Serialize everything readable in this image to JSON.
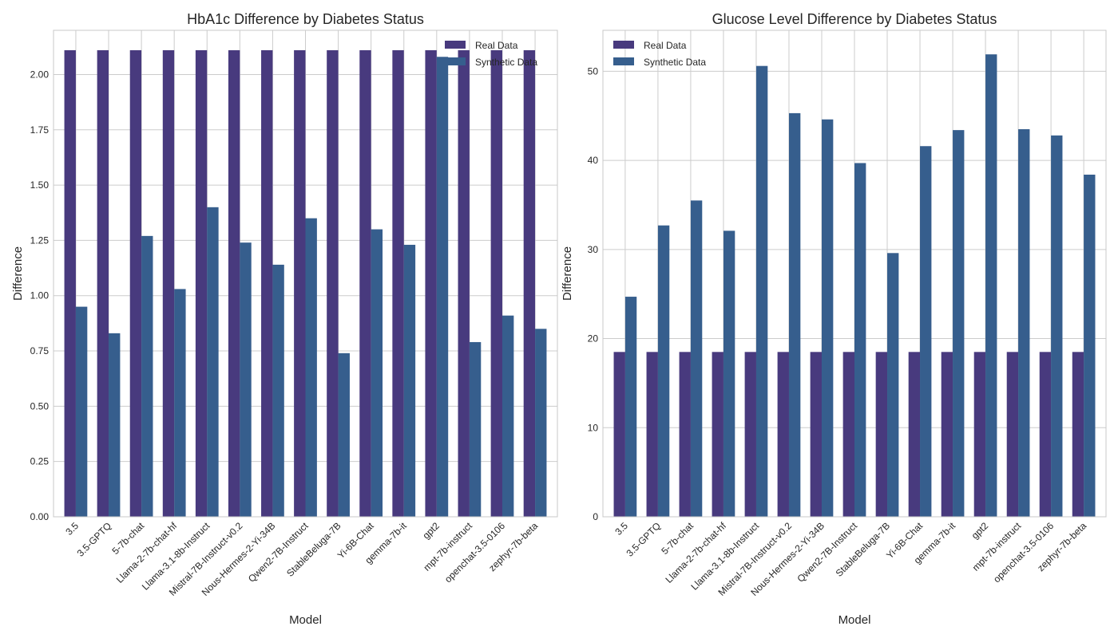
{
  "colors": {
    "real": "#483a7e",
    "synthetic": "#365e8d",
    "grid": "#cccccc",
    "axes_edge": "#c8c8c8",
    "background": "#ffffff"
  },
  "chart_data": [
    {
      "type": "bar",
      "title": "HbA1c Difference by Diabetes Status",
      "xlabel": "Model",
      "ylabel": "Difference",
      "ylim": [
        0,
        2.2
      ],
      "yticks": [
        0.0,
        0.25,
        0.5,
        0.75,
        1.0,
        1.25,
        1.5,
        1.75,
        2.0
      ],
      "ytick_labels": [
        "0.00",
        "0.25",
        "0.50",
        "0.75",
        "1.00",
        "1.25",
        "1.50",
        "1.75",
        "2.00"
      ],
      "grid": true,
      "legend_position": "top-right",
      "categories": [
        "3.5",
        "3.5-GPTQ",
        "5-7b-chat",
        "Llama-2-7b-chat-hf",
        "Llama-3.1-8b-Instruct",
        "Mistral-7B-Instruct-v0.2",
        "Nous-Hermes-2-Yi-34B",
        "Qwen2-7B-Instruct",
        "StableBeluga-7B",
        "Yi-6B-Chat",
        "gemma-7b-it",
        "gpt2",
        "mpt-7b-instruct",
        "openchat-3.5-0106",
        "zephyr-7b-beta"
      ],
      "series": [
        {
          "name": "Real Data",
          "color_key": "real",
          "values": [
            2.11,
            2.11,
            2.11,
            2.11,
            2.11,
            2.11,
            2.11,
            2.11,
            2.11,
            2.11,
            2.11,
            2.11,
            2.11,
            2.11,
            2.11
          ]
        },
        {
          "name": "Synthetic Data",
          "color_key": "synthetic",
          "values": [
            0.95,
            0.83,
            1.27,
            1.03,
            1.4,
            1.24,
            1.14,
            1.35,
            0.74,
            1.3,
            1.23,
            2.08,
            0.79,
            0.91,
            0.85
          ]
        }
      ]
    },
    {
      "type": "bar",
      "title": "Glucose Level Difference by Diabetes Status",
      "xlabel": "Model",
      "ylabel": "Difference",
      "ylim": [
        0,
        54.6
      ],
      "yticks": [
        0,
        10,
        20,
        30,
        40,
        50
      ],
      "ytick_labels": [
        "0",
        "10",
        "20",
        "30",
        "40",
        "50"
      ],
      "grid": true,
      "legend_position": "top-left",
      "categories": [
        "3.5",
        "3.5-GPTQ",
        "5-7b-chat",
        "Llama-2-7b-chat-hf",
        "Llama-3.1-8b-Instruct",
        "Mistral-7B-Instruct-v0.2",
        "Nous-Hermes-2-Yi-34B",
        "Qwen2-7B-Instruct",
        "StableBeluga-7B",
        "Yi-6B-Chat",
        "gemma-7b-it",
        "gpt2",
        "mpt-7b-instruct",
        "openchat-3.5-0106",
        "zephyr-7b-beta"
      ],
      "series": [
        {
          "name": "Real Data",
          "color_key": "real",
          "values": [
            18.5,
            18.5,
            18.5,
            18.5,
            18.5,
            18.5,
            18.5,
            18.5,
            18.5,
            18.5,
            18.5,
            18.5,
            18.5,
            18.5,
            18.5
          ]
        },
        {
          "name": "Synthetic Data",
          "color_key": "synthetic",
          "values": [
            24.7,
            32.7,
            35.5,
            32.1,
            50.6,
            45.3,
            44.6,
            39.7,
            29.6,
            41.6,
            43.4,
            51.9,
            43.5,
            42.8,
            38.4
          ]
        }
      ]
    }
  ]
}
